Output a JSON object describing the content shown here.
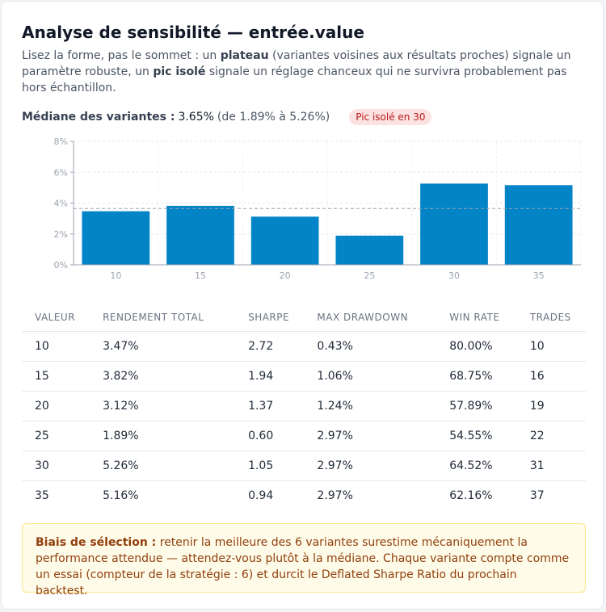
{
  "header": {
    "title": "Analyse de sensibilité — entrée.value",
    "intro": {
      "p1": "Lisez la forme, pas le sommet : un ",
      "b1": "plateau",
      "p2": " (variantes voisines aux résultats proches) signale un paramètre robuste, un ",
      "b2": "pic isolé",
      "p3": " signale un réglage chanceux qui ne survivra probablement pas hors échantillon."
    }
  },
  "summary": {
    "median_label": "Médiane des variantes :",
    "median_value": "3.65%",
    "range_text": "(de 1.89% à 5.26%)",
    "badge": "Pic isolé en 30"
  },
  "chart_data": {
    "type": "bar",
    "categories": [
      "10",
      "15",
      "20",
      "25",
      "30",
      "35"
    ],
    "values": [
      3.47,
      3.82,
      3.12,
      1.89,
      5.26,
      5.16
    ],
    "ylim": [
      0,
      8
    ],
    "yticks": [
      0,
      2,
      4,
      6,
      8
    ],
    "ytick_labels": [
      "0%",
      "2%",
      "4%",
      "6%",
      "8%"
    ],
    "reference_line": 3.65,
    "grid": true,
    "bar_color": "#0284c7",
    "title": "",
    "xlabel": "",
    "ylabel": ""
  },
  "table": {
    "columns": [
      "VALEUR",
      "RENDEMENT TOTAL",
      "SHARPE",
      "MAX DRAWDOWN",
      "WIN RATE",
      "TRADES"
    ],
    "rows": [
      [
        "10",
        "3.47%",
        "2.72",
        "0.43%",
        "80.00%",
        "10"
      ],
      [
        "15",
        "3.82%",
        "1.94",
        "1.06%",
        "68.75%",
        "16"
      ],
      [
        "20",
        "3.12%",
        "1.37",
        "1.24%",
        "57.89%",
        "19"
      ],
      [
        "25",
        "1.89%",
        "0.60",
        "2.97%",
        "54.55%",
        "22"
      ],
      [
        "30",
        "5.26%",
        "1.05",
        "2.97%",
        "64.52%",
        "31"
      ],
      [
        "35",
        "5.16%",
        "0.94",
        "2.97%",
        "62.16%",
        "37"
      ]
    ]
  },
  "note": {
    "bold": "Biais de sélection :",
    "text": " retenir la meilleure des 6 variantes surestime mécaniquement la performance attendue — attendez-vous plutôt à la médiane. Chaque variante compte comme un essai (compteur de la stratégie : 6) et durcit le Deflated Sharpe Ratio du prochain backtest."
  },
  "colors": {
    "positive": "#16a34a",
    "negative": "#dc2626",
    "badge_bg": "#fde2e2",
    "note_bg": "#fefbe8"
  }
}
